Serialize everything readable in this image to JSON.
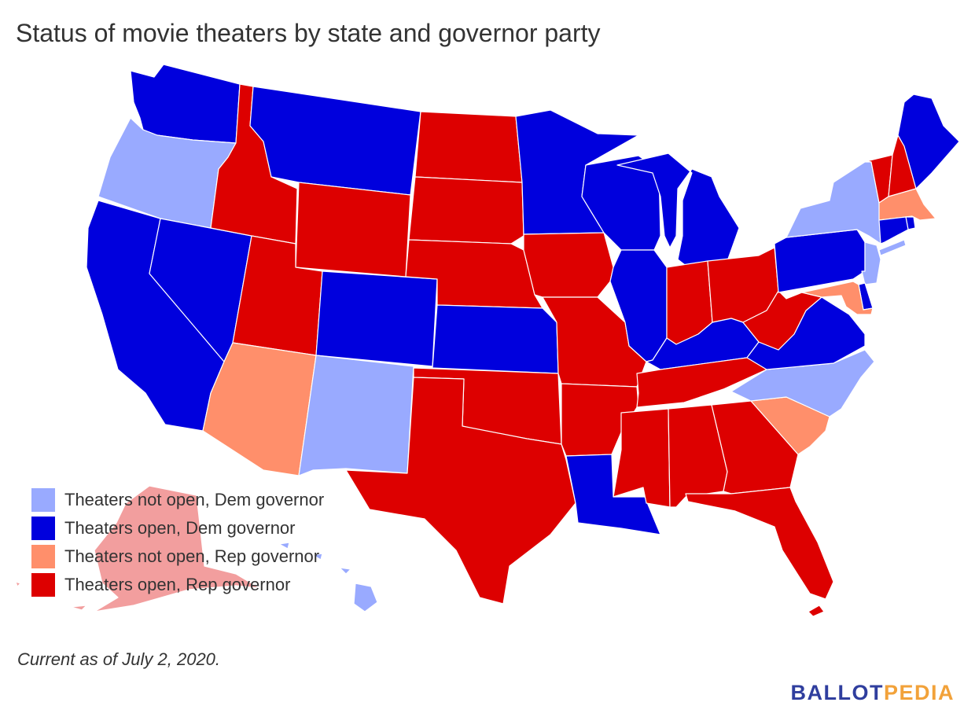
{
  "title": "Status of movie theaters by state and governor party",
  "legend": [
    {
      "key": "dem_closed",
      "label": "Theaters not open, Dem governor",
      "color": "#99aaff"
    },
    {
      "key": "dem_open",
      "label": "Theaters open, Dem governor",
      "color": "#0000dd"
    },
    {
      "key": "rep_closed",
      "label": "Theaters not open, Rep governor",
      "color": "#ff8f6b"
    },
    {
      "key": "rep_open",
      "label": "Theaters open, Rep governor",
      "color": "#dd0000"
    }
  ],
  "footnote": "Current as of July 2, 2020.",
  "logo": {
    "part1": "BALLOT",
    "part2": "PEDIA",
    "color1": "#2f3e9e",
    "color2": "#f2a23a"
  },
  "states": [
    {
      "name": "Washington",
      "status": "dem_open"
    },
    {
      "name": "Oregon",
      "status": "dem_closed"
    },
    {
      "name": "California",
      "status": "dem_open"
    },
    {
      "name": "Nevada",
      "status": "dem_open"
    },
    {
      "name": "Idaho",
      "status": "rep_open"
    },
    {
      "name": "Montana",
      "status": "dem_open"
    },
    {
      "name": "Wyoming",
      "status": "rep_open"
    },
    {
      "name": "Utah",
      "status": "rep_open"
    },
    {
      "name": "Arizona",
      "status": "rep_closed"
    },
    {
      "name": "Colorado",
      "status": "dem_open"
    },
    {
      "name": "New Mexico",
      "status": "dem_closed"
    },
    {
      "name": "North Dakota",
      "status": "rep_open"
    },
    {
      "name": "South Dakota",
      "status": "rep_open"
    },
    {
      "name": "Nebraska",
      "status": "rep_open"
    },
    {
      "name": "Kansas",
      "status": "dem_open"
    },
    {
      "name": "Oklahoma",
      "status": "rep_open"
    },
    {
      "name": "Texas",
      "status": "rep_open"
    },
    {
      "name": "Minnesota",
      "status": "dem_open"
    },
    {
      "name": "Iowa",
      "status": "rep_open"
    },
    {
      "name": "Missouri",
      "status": "rep_open"
    },
    {
      "name": "Arkansas",
      "status": "rep_open"
    },
    {
      "name": "Louisiana",
      "status": "dem_open"
    },
    {
      "name": "Wisconsin",
      "status": "dem_open"
    },
    {
      "name": "Illinois",
      "status": "dem_open"
    },
    {
      "name": "Michigan",
      "status": "dem_open"
    },
    {
      "name": "Indiana",
      "status": "rep_open"
    },
    {
      "name": "Ohio",
      "status": "rep_open"
    },
    {
      "name": "Kentucky",
      "status": "dem_open"
    },
    {
      "name": "Tennessee",
      "status": "rep_open"
    },
    {
      "name": "Mississippi",
      "status": "rep_open"
    },
    {
      "name": "Alabama",
      "status": "rep_open"
    },
    {
      "name": "Georgia",
      "status": "rep_open"
    },
    {
      "name": "Florida",
      "status": "rep_open"
    },
    {
      "name": "South Carolina",
      "status": "rep_closed"
    },
    {
      "name": "North Carolina",
      "status": "dem_closed"
    },
    {
      "name": "Virginia",
      "status": "dem_open"
    },
    {
      "name": "West Virginia",
      "status": "rep_open"
    },
    {
      "name": "Pennsylvania",
      "status": "dem_open"
    },
    {
      "name": "New York",
      "status": "dem_closed"
    },
    {
      "name": "Vermont",
      "status": "rep_open"
    },
    {
      "name": "New Hampshire",
      "status": "rep_open"
    },
    {
      "name": "Maine",
      "status": "dem_open"
    },
    {
      "name": "Massachusetts",
      "status": "rep_closed"
    },
    {
      "name": "Rhode Island",
      "status": "dem_open"
    },
    {
      "name": "Connecticut",
      "status": "dem_open"
    },
    {
      "name": "New Jersey",
      "status": "dem_closed"
    },
    {
      "name": "Delaware",
      "status": "dem_open"
    },
    {
      "name": "Maryland",
      "status": "rep_closed"
    },
    {
      "name": "Alaska",
      "status": "rep_open"
    },
    {
      "name": "Hawaii",
      "status": "dem_closed"
    }
  ]
}
